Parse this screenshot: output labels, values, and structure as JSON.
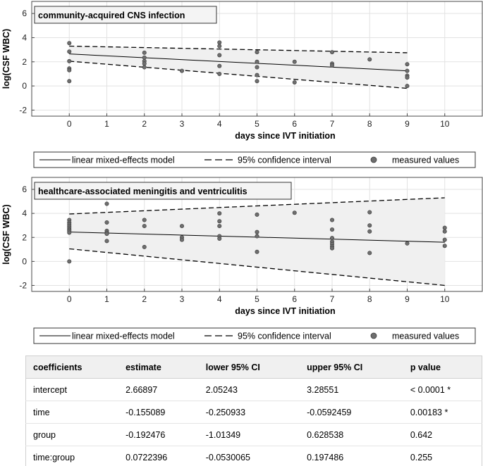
{
  "chart_data": [
    {
      "type": "line",
      "title": "community-acquired CNS infection",
      "xlabel": "days since IVT initiation",
      "ylabel": "log(CSF WBC)",
      "xlim": [
        -1,
        11
      ],
      "ylim": [
        -2.5,
        7
      ],
      "xticks": [
        0,
        1,
        2,
        3,
        4,
        5,
        6,
        7,
        8,
        9,
        10
      ],
      "yticks": [
        -2,
        0,
        2,
        4,
        6
      ],
      "grid": true,
      "model_line": {
        "x": [
          0,
          9
        ],
        "y": [
          2.65,
          1.25
        ]
      },
      "ci_upper": {
        "x": [
          0,
          9
        ],
        "y": [
          3.3,
          2.75
        ]
      },
      "ci_lower": {
        "x": [
          0,
          9
        ],
        "y": [
          2.05,
          -0.2
        ]
      },
      "points": [
        {
          "x": 0,
          "y": 3.55
        },
        {
          "x": 0,
          "y": 2.85
        },
        {
          "x": 0,
          "y": 2.05
        },
        {
          "x": 0,
          "y": 1.45
        },
        {
          "x": 0,
          "y": 1.3
        },
        {
          "x": 0,
          "y": 0.4
        },
        {
          "x": 2,
          "y": 2.75
        },
        {
          "x": 2,
          "y": 2.35
        },
        {
          "x": 2,
          "y": 2.05
        },
        {
          "x": 2,
          "y": 1.85
        },
        {
          "x": 2,
          "y": 1.55
        },
        {
          "x": 3,
          "y": 1.25
        },
        {
          "x": 4,
          "y": 3.6
        },
        {
          "x": 4,
          "y": 3.3
        },
        {
          "x": 4,
          "y": 2.55
        },
        {
          "x": 4,
          "y": 1.65
        },
        {
          "x": 4,
          "y": 1.0
        },
        {
          "x": 5,
          "y": 2.8
        },
        {
          "x": 5,
          "y": 2.0
        },
        {
          "x": 5,
          "y": 1.55
        },
        {
          "x": 5,
          "y": 0.9
        },
        {
          "x": 5,
          "y": 0.4
        },
        {
          "x": 6,
          "y": 2.0
        },
        {
          "x": 6,
          "y": 0.3
        },
        {
          "x": 7,
          "y": 2.8
        },
        {
          "x": 7,
          "y": 1.85
        },
        {
          "x": 7,
          "y": 1.7
        },
        {
          "x": 8,
          "y": 2.2
        },
        {
          "x": 9,
          "y": 1.8
        },
        {
          "x": 9,
          "y": 1.25
        },
        {
          "x": 9,
          "y": 0.85
        },
        {
          "x": 9,
          "y": 0.7
        },
        {
          "x": 9,
          "y": 0.0
        }
      ],
      "legend": [
        "linear mixed-effects model",
        "95% confidence interval",
        "measured values"
      ]
    },
    {
      "type": "line",
      "title": "healthcare-associated meningitis and ventriculitis",
      "xlabel": "days since IVT initiation",
      "ylabel": "log(CSF WBC)",
      "xlim": [
        -1,
        11
      ],
      "ylim": [
        -2.5,
        7
      ],
      "xticks": [
        0,
        1,
        2,
        3,
        4,
        5,
        6,
        7,
        8,
        9,
        10
      ],
      "yticks": [
        -2,
        0,
        2,
        4,
        6
      ],
      "grid": true,
      "model_line": {
        "x": [
          0,
          10
        ],
        "y": [
          2.45,
          1.6
        ]
      },
      "ci_upper": {
        "x": [
          0,
          10
        ],
        "y": [
          3.95,
          5.3
        ]
      },
      "ci_lower": {
        "x": [
          0,
          10
        ],
        "y": [
          1.05,
          -2.0
        ]
      },
      "points": [
        {
          "x": 0,
          "y": 3.45
        },
        {
          "x": 0,
          "y": 3.25
        },
        {
          "x": 0,
          "y": 3.1
        },
        {
          "x": 0,
          "y": 2.95
        },
        {
          "x": 0,
          "y": 2.8
        },
        {
          "x": 0,
          "y": 2.65
        },
        {
          "x": 0,
          "y": 2.55
        },
        {
          "x": 0,
          "y": 2.4
        },
        {
          "x": 0,
          "y": 0.0
        },
        {
          "x": 1,
          "y": 4.8
        },
        {
          "x": 1,
          "y": 3.25
        },
        {
          "x": 1,
          "y": 2.55
        },
        {
          "x": 1,
          "y": 2.4
        },
        {
          "x": 1,
          "y": 2.3
        },
        {
          "x": 1,
          "y": 1.7
        },
        {
          "x": 2,
          "y": 3.45
        },
        {
          "x": 2,
          "y": 2.95
        },
        {
          "x": 2,
          "y": 1.2
        },
        {
          "x": 3,
          "y": 2.95
        },
        {
          "x": 3,
          "y": 2.0
        },
        {
          "x": 3,
          "y": 1.8
        },
        {
          "x": 4,
          "y": 4.0
        },
        {
          "x": 4,
          "y": 3.35
        },
        {
          "x": 4,
          "y": 2.95
        },
        {
          "x": 4,
          "y": 2.1
        },
        {
          "x": 4,
          "y": 1.9
        },
        {
          "x": 5,
          "y": 3.9
        },
        {
          "x": 5,
          "y": 2.45
        },
        {
          "x": 5,
          "y": 2.1
        },
        {
          "x": 5,
          "y": 0.8
        },
        {
          "x": 6,
          "y": 4.05
        },
        {
          "x": 7,
          "y": 3.45
        },
        {
          "x": 7,
          "y": 2.65
        },
        {
          "x": 7,
          "y": 1.95
        },
        {
          "x": 7,
          "y": 1.65
        },
        {
          "x": 7,
          "y": 1.45
        },
        {
          "x": 7,
          "y": 1.25
        },
        {
          "x": 7,
          "y": 1.1
        },
        {
          "x": 8,
          "y": 4.1
        },
        {
          "x": 8,
          "y": 3.0
        },
        {
          "x": 8,
          "y": 2.5
        },
        {
          "x": 8,
          "y": 0.7
        },
        {
          "x": 9,
          "y": 1.5
        },
        {
          "x": 10,
          "y": 2.8
        },
        {
          "x": 10,
          "y": 2.5
        },
        {
          "x": 10,
          "y": 1.8
        },
        {
          "x": 10,
          "y": 1.3
        }
      ],
      "legend": [
        "linear mixed-effects model",
        "95% confidence interval",
        "measured values"
      ]
    },
    {
      "type": "table",
      "columns": [
        "coefficients",
        "estimate",
        "lower 95% CI",
        "upper 95% CI",
        "p value"
      ],
      "rows": [
        [
          "intercept",
          "2.66897",
          "2.05243",
          "3.28551",
          "< 0.0001 *"
        ],
        [
          "time",
          "-0.155089",
          "-0.250933",
          "-0.0592459",
          "0.00183 *"
        ],
        [
          "group",
          "-0.192476",
          "-1.01349",
          "0.628538",
          "0.642"
        ],
        [
          "time:group",
          "0.0722396",
          "-0.0530065",
          "0.197486",
          "0.255"
        ]
      ]
    }
  ],
  "colors": {
    "ci_fill": "#f0f0f0",
    "grid": "#e2e2e2",
    "marker_fill": "#6e6e6e",
    "axis": "#4a4a4a"
  }
}
